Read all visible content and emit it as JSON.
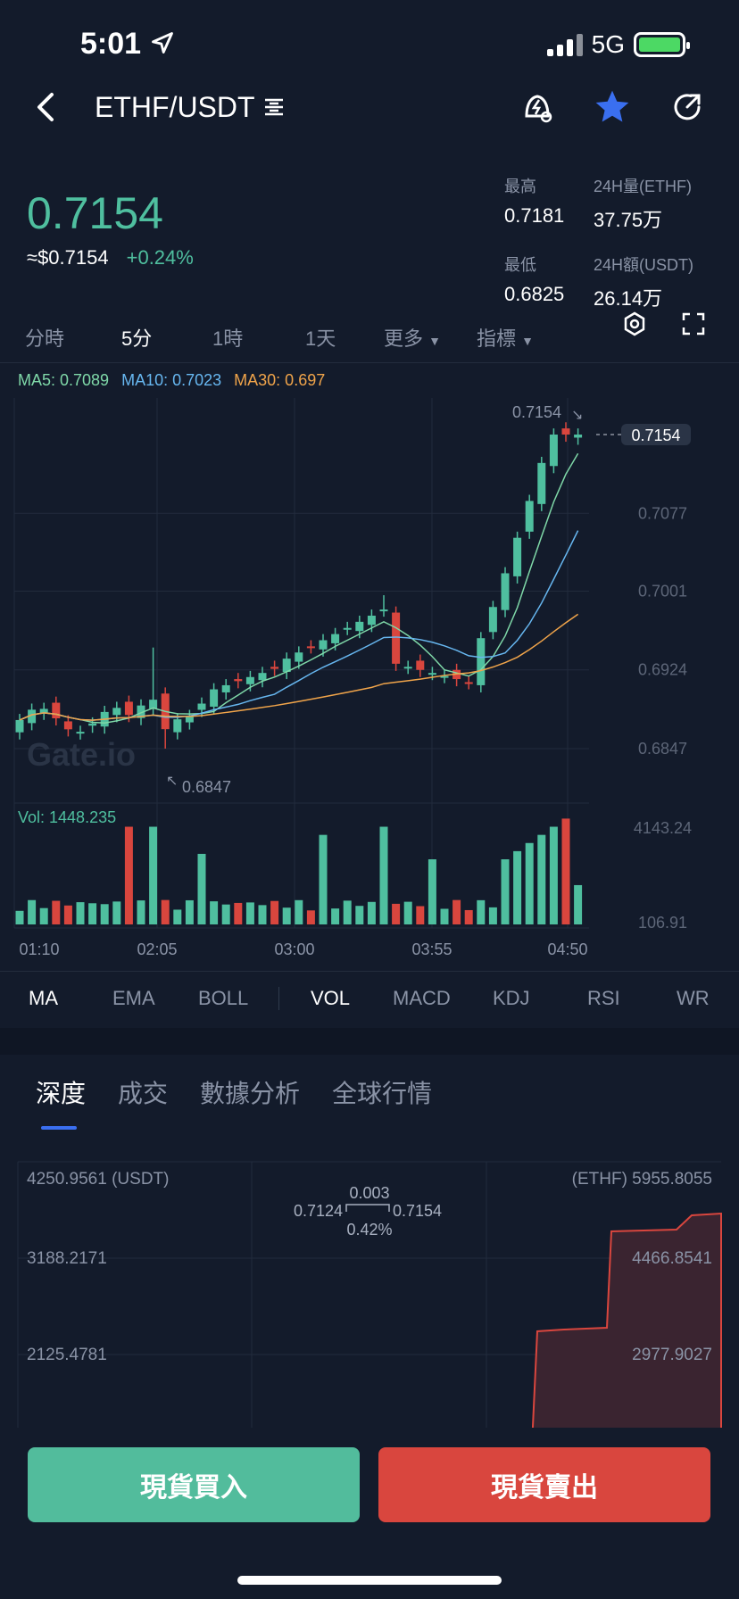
{
  "status_bar": {
    "time": "5:01",
    "network": "5G"
  },
  "header": {
    "pair": "ETHF/USDT",
    "icons": [
      "back-arrow-icon",
      "menu-lines-icon",
      "price-alert-icon",
      "favorite-star-icon",
      "share-icon"
    ]
  },
  "ticker": {
    "last_price": "0.7154",
    "usd_price": "≈$0.7154",
    "change_pct": "+0.24%",
    "high_label": "最高",
    "high_value": "0.7181",
    "vol_label": "24H量(ETHF)",
    "vol_value": "37.75万",
    "low_label": "最低",
    "low_value": "0.6825",
    "amount_label": "24H額(USDT)",
    "amount_value": "26.14万"
  },
  "timeframes": {
    "items": [
      "分時",
      "5分",
      "1時",
      "1天",
      "更多",
      "指標"
    ],
    "active": "5分"
  },
  "chart": {
    "ma5": "MA5: 0.7089",
    "ma10": "MA10: 0.7023",
    "ma30": "MA30: 0.697",
    "price_axis": [
      "0.7077",
      "0.7001",
      "0.6924",
      "0.6847"
    ],
    "current_price_tag": "0.7154",
    "high_marker": "0.7154",
    "low_marker": "0.6847",
    "watermark": "Gate.io",
    "volume_label": "Vol: 1448.235",
    "volume_axis": [
      "4143.24",
      "106.91"
    ],
    "time_axis": [
      "01:10",
      "02:05",
      "03:00",
      "03:55",
      "04:50"
    ],
    "colors": {
      "up": "#4fbf9f",
      "down": "#d9463e",
      "ma5": "#7fd8a8",
      "ma10": "#67b7f0",
      "ma30": "#f0a44a"
    }
  },
  "indicator_tabs": {
    "items": [
      "MA",
      "EMA",
      "BOLL",
      "VOL",
      "MACD",
      "KDJ",
      "RSI",
      "WR"
    ],
    "active": [
      "MA",
      "VOL"
    ]
  },
  "depth": {
    "tabs": [
      "深度",
      "成交",
      "數據分析",
      "全球行情"
    ],
    "active_tab": "深度",
    "left_top": "4250.9561 (USDT)",
    "right_top": "(ETHF) 5955.8055",
    "left_axis": [
      "3188.2171",
      "2125.4781"
    ],
    "right_axis": [
      "4466.8541",
      "2977.9027"
    ],
    "spread_bid": "0.7124",
    "spread_ask": "0.7154",
    "spread_value": "0.003",
    "spread_pct": "0.42%"
  },
  "actions": {
    "buy": "現貨買入",
    "sell": "現貨賣出"
  }
}
